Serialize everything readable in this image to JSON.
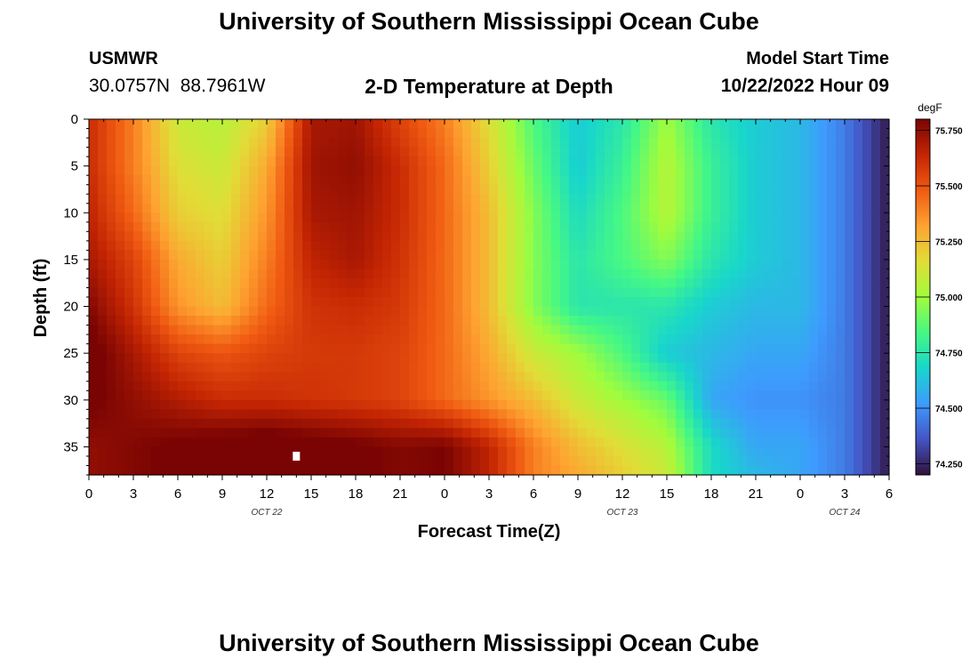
{
  "header": {
    "title": "University of Southern Mississippi Ocean Cube",
    "station": "USMWR",
    "coords": "30.0757N  88.7961W",
    "subtitle": "2-D Temperature at Depth",
    "start_label": "Model Start Time",
    "start_value": "10/22/2022 Hour 09"
  },
  "footer": {
    "title": "University of Southern Mississippi Ocean Cube"
  },
  "colors": {
    "background": "#ffffff",
    "colormap": [
      "#30123b",
      "#4454c4",
      "#3e9bfe",
      "#18d6cb",
      "#46f884",
      "#a2fc3c",
      "#e1dd37",
      "#fea331",
      "#f05b12",
      "#c42503",
      "#7a0403"
    ]
  },
  "chart_data": {
    "type": "heatmap",
    "xlabel": "Forecast Time(Z)",
    "ylabel": "Depth (ft)",
    "colorbar_label": "degF",
    "x_range": [
      0,
      54
    ],
    "x_tick_labels": [
      "0",
      "3",
      "6",
      "9",
      "12",
      "15",
      "18",
      "21",
      "0",
      "3",
      "6",
      "9",
      "12",
      "15",
      "18",
      "21",
      "0",
      "3",
      "6"
    ],
    "date_labels": [
      {
        "text": "OCT 22",
        "at_hour": 12
      },
      {
        "text": "OCT 23",
        "at_hour": 36
      },
      {
        "text": "OCT 24",
        "at_hour": 51
      }
    ],
    "y_range": [
      0,
      38
    ],
    "y_ticks": [
      0,
      5,
      10,
      15,
      20,
      25,
      30,
      35
    ],
    "colorbar_range": [
      74.2,
      75.8
    ],
    "colorbar_ticks": [
      "74.250",
      "74.500",
      "74.750",
      "75.000",
      "75.250",
      "75.500",
      "75.750"
    ],
    "marker": {
      "hour": 14,
      "depth": 36
    },
    "hours": [
      0,
      3,
      6,
      9,
      12,
      15,
      18,
      21,
      24,
      27,
      30,
      33,
      36,
      39,
      42,
      45,
      48,
      51,
      54
    ],
    "depths": [
      0,
      5,
      10,
      15,
      20,
      25,
      30,
      35,
      38
    ],
    "temperatures_degF": [
      [
        75.62,
        75.4,
        75.1,
        75.05,
        75.2,
        75.7,
        75.72,
        75.55,
        75.4,
        75.15,
        74.85,
        74.65,
        74.75,
        75.0,
        74.75,
        74.65,
        74.6,
        74.45,
        74.22
      ],
      [
        75.62,
        75.4,
        75.15,
        75.1,
        75.3,
        75.72,
        75.75,
        75.62,
        75.45,
        75.2,
        74.9,
        74.65,
        74.8,
        75.05,
        74.8,
        74.65,
        74.6,
        74.45,
        74.22
      ],
      [
        75.65,
        75.45,
        75.2,
        75.15,
        75.35,
        75.7,
        75.72,
        75.62,
        75.45,
        75.25,
        74.95,
        74.7,
        74.85,
        75.05,
        74.8,
        74.65,
        74.6,
        74.45,
        74.22
      ],
      [
        75.7,
        75.55,
        75.3,
        75.2,
        75.4,
        75.65,
        75.7,
        75.6,
        75.45,
        75.25,
        74.95,
        74.75,
        74.85,
        74.95,
        74.75,
        74.65,
        74.6,
        74.45,
        74.22
      ],
      [
        75.78,
        75.6,
        75.35,
        75.25,
        75.45,
        75.6,
        75.62,
        75.58,
        75.45,
        75.25,
        74.95,
        74.75,
        74.75,
        74.75,
        74.65,
        74.6,
        74.6,
        74.45,
        74.22
      ],
      [
        75.85,
        75.7,
        75.55,
        75.5,
        75.55,
        75.58,
        75.58,
        75.55,
        75.45,
        75.3,
        75.1,
        75.0,
        74.85,
        74.65,
        74.6,
        74.55,
        74.55,
        74.45,
        74.22
      ],
      [
        75.82,
        75.75,
        75.68,
        75.62,
        75.62,
        75.6,
        75.58,
        75.55,
        75.45,
        75.35,
        75.25,
        75.1,
        75.0,
        74.9,
        74.55,
        74.5,
        74.5,
        74.45,
        74.22
      ],
      [
        75.75,
        75.78,
        75.82,
        75.85,
        75.88,
        75.85,
        75.82,
        75.78,
        75.8,
        75.65,
        75.4,
        75.25,
        75.15,
        75.05,
        74.7,
        74.55,
        74.55,
        74.45,
        74.22
      ],
      [
        75.75,
        75.78,
        75.82,
        75.85,
        75.88,
        75.85,
        75.82,
        75.78,
        75.8,
        75.65,
        75.4,
        75.3,
        75.2,
        75.1,
        74.7,
        74.6,
        74.55,
        74.45,
        74.22
      ]
    ]
  }
}
